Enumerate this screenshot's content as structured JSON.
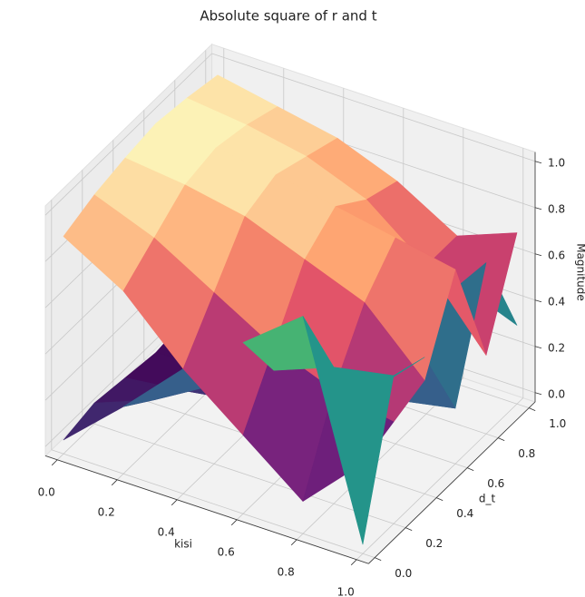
{
  "chart_data": {
    "type": "surface3d",
    "title": "Absolute square of r and t",
    "xlabel": "kisi",
    "ylabel": "d_t",
    "zlabel": "Magnitude",
    "x": [
      0,
      0.2,
      0.4,
      0.6,
      0.8,
      1.0
    ],
    "y": [
      0,
      0.2,
      0.4,
      0.6,
      0.8,
      1.0
    ],
    "xlim": [
      0,
      1
    ],
    "ylim": [
      0,
      1
    ],
    "zlim": [
      0,
      1
    ],
    "xticks": [
      {
        "value": 0,
        "label": "0.0"
      },
      {
        "value": 0.2,
        "label": "0.2"
      },
      {
        "value": 0.4,
        "label": "0.4"
      },
      {
        "value": 0.6,
        "label": "0.6"
      },
      {
        "value": 0.8,
        "label": "0.8"
      },
      {
        "value": 1,
        "label": "1.0"
      }
    ],
    "yticks": [
      {
        "value": 0,
        "label": "0.0"
      },
      {
        "value": 0.2,
        "label": "0.2"
      },
      {
        "value": 0.4,
        "label": "0.4"
      },
      {
        "value": 0.6,
        "label": "0.6"
      },
      {
        "value": 0.8,
        "label": "0.8"
      },
      {
        "value": 1,
        "label": "1.0"
      }
    ],
    "zticks": [
      {
        "value": 0,
        "label": "0.0"
      },
      {
        "value": 0.2,
        "label": "0.2"
      },
      {
        "value": 0.4,
        "label": "0.4"
      },
      {
        "value": 0.6,
        "label": "0.6"
      },
      {
        "value": 0.8,
        "label": "0.8"
      },
      {
        "value": 1,
        "label": "1.0"
      }
    ],
    "grid": true,
    "series": [
      {
        "cmap": "magma",
        "values": [
          [
            0.9,
            0.95,
            0.98,
            1,
            0.98,
            0.95
          ],
          [
            0.75,
            0.85,
            0.95,
            0.98,
            0.95,
            0.9
          ],
          [
            0.5,
            0.7,
            0.9,
            0.95,
            0.9,
            0.85
          ],
          [
            0.3,
            0.55,
            0.8,
            0.9,
            0.8,
            0.75
          ],
          [
            0.1,
            0.45,
            0.7,
            0.85,
            0.6,
            0.6
          ],
          [
            0.35,
            0.4,
            0.45,
            0.8,
            0.3,
            0.7
          ]
        ]
      },
      {
        "cmap": "viridis",
        "values": [
          [
            0.02,
            0.05,
            0.03,
            0.01,
            0.03,
            0.05
          ],
          [
            0.25,
            0.15,
            0.06,
            0.02,
            0.05,
            0.1
          ],
          [
            0.5,
            0.3,
            0.1,
            0.05,
            0.1,
            0.15
          ],
          [
            0.7,
            0.45,
            0.2,
            0.1,
            0.2,
            0.25
          ],
          [
            0.9,
            0.55,
            0.3,
            0.15,
            0.4,
            0.4
          ],
          [
            0.0,
            0.6,
            0.55,
            0.2,
            0.7,
            0.3
          ]
        ]
      }
    ]
  }
}
